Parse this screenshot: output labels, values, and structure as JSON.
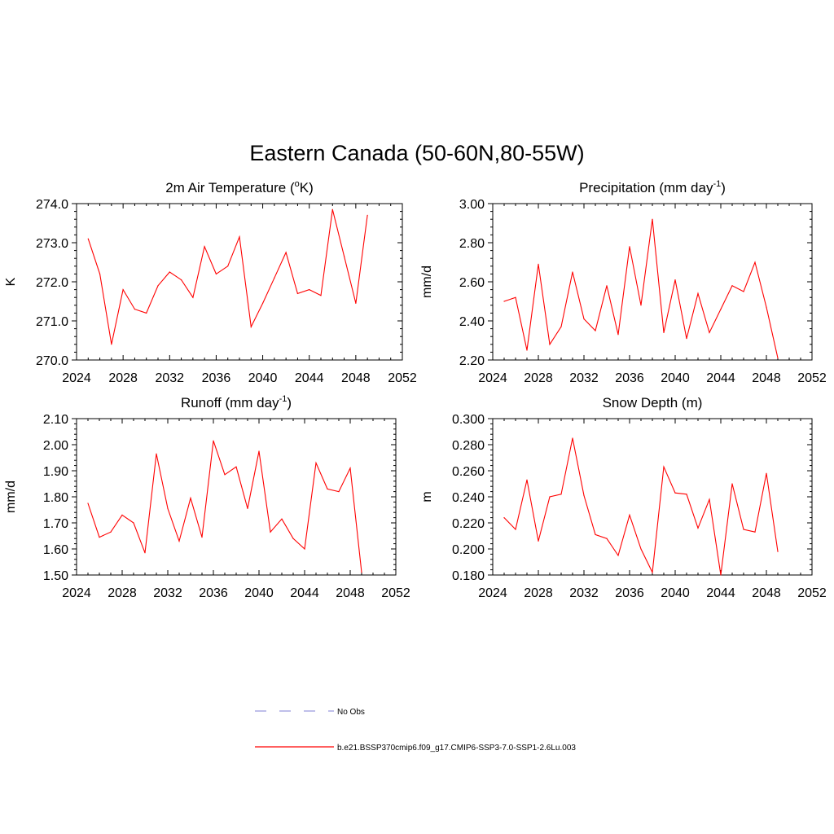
{
  "title": "Eastern Canada (50-60N,80-55W)",
  "legend": {
    "items": [
      {
        "label": "No Obs",
        "style": "dashed",
        "color": "#9999dd"
      },
      {
        "label": "b.e21.BSSP370cmip6.f09_g17.CMIP6-SSP3-7.0-SSP1-2.6Lu.003",
        "style": "solid",
        "color": "#ff0000"
      }
    ]
  },
  "chart_data": [
    {
      "type": "line",
      "title_main": "2m Air Temperature (",
      "title_sup": "o",
      "title_tail": "K)",
      "ylabel": "K",
      "xlim": [
        2024,
        2052
      ],
      "ylim": [
        270.0,
        274.0
      ],
      "xticks": [
        "2024",
        "2028",
        "2032",
        "2036",
        "2040",
        "2044",
        "2048",
        "2052"
      ],
      "yticks": [
        "270.0",
        "271.0",
        "272.0",
        "273.0",
        "274.0"
      ],
      "x": [
        2025,
        2026,
        2027,
        2028,
        2029,
        2030,
        2031,
        2032,
        2033,
        2034,
        2035,
        2036,
        2037,
        2038,
        2039,
        2040,
        2041,
        2042,
        2043,
        2044,
        2045,
        2046,
        2047,
        2048,
        2049
      ],
      "series": [
        {
          "color": "#ff0000",
          "values": [
            273.1,
            272.2,
            270.4,
            271.8,
            271.3,
            271.2,
            271.9,
            272.25,
            272.05,
            271.6,
            272.9,
            272.2,
            272.4,
            273.15,
            270.85,
            271.45,
            272.1,
            272.75,
            271.7,
            271.8,
            271.65,
            273.85,
            272.65,
            271.45,
            273.7
          ]
        }
      ]
    },
    {
      "type": "line",
      "title_main": "Precipitation (mm day",
      "title_sup": "-1",
      "title_tail": ")",
      "ylabel": "mm/d",
      "xlim": [
        2024,
        2052
      ],
      "ylim": [
        2.2,
        3.0
      ],
      "xticks": [
        "2024",
        "2028",
        "2032",
        "2036",
        "2040",
        "2044",
        "2048",
        "2052"
      ],
      "yticks": [
        "2.20",
        "2.40",
        "2.60",
        "2.80",
        "3.00"
      ],
      "x": [
        2025,
        2026,
        2027,
        2028,
        2029,
        2030,
        2031,
        2032,
        2033,
        2034,
        2035,
        2036,
        2037,
        2038,
        2039,
        2040,
        2041,
        2042,
        2043,
        2044,
        2045,
        2046,
        2047,
        2048,
        2049
      ],
      "series": [
        {
          "color": "#ff0000",
          "values": [
            2.5,
            2.52,
            2.25,
            2.69,
            2.28,
            2.37,
            2.65,
            2.41,
            2.35,
            2.58,
            2.33,
            2.78,
            2.48,
            2.92,
            2.34,
            2.61,
            2.31,
            2.54,
            2.34,
            2.46,
            2.58,
            2.55,
            2.7,
            2.47,
            2.21
          ]
        }
      ]
    },
    {
      "type": "line",
      "title_main": "Runoff (mm day",
      "title_sup": "-1",
      "title_tail": ")",
      "ylabel": "mm/d",
      "xlim": [
        2024,
        2052
      ],
      "ylim": [
        1.5,
        2.1
      ],
      "xticks": [
        "2024",
        "2028",
        "2032",
        "2036",
        "2040",
        "2044",
        "2048",
        "2052"
      ],
      "yticks": [
        "1.50",
        "1.60",
        "1.70",
        "1.80",
        "1.90",
        "2.00",
        "2.10"
      ],
      "x": [
        2025,
        2026,
        2027,
        2028,
        2029,
        2030,
        2031,
        2032,
        2033,
        2034,
        2035,
        2036,
        2037,
        2038,
        2039,
        2040,
        2041,
        2042,
        2043,
        2044,
        2045,
        2046,
        2047,
        2048,
        2049
      ],
      "series": [
        {
          "color": "#ff0000",
          "values": [
            1.775,
            1.645,
            1.665,
            1.73,
            1.7,
            1.585,
            1.965,
            1.755,
            1.63,
            1.795,
            1.645,
            2.015,
            1.885,
            1.915,
            1.755,
            1.975,
            1.665,
            1.715,
            1.64,
            1.6,
            1.93,
            1.83,
            1.82,
            1.91,
            1.51
          ]
        }
      ]
    },
    {
      "type": "line",
      "title_main": "Snow Depth (m)",
      "title_sup": "",
      "title_tail": "",
      "ylabel": "m",
      "xlim": [
        2024,
        2052
      ],
      "ylim": [
        0.18,
        0.3
      ],
      "xticks": [
        "2024",
        "2028",
        "2032",
        "2036",
        "2040",
        "2044",
        "2048",
        "2052"
      ],
      "yticks": [
        "0.180",
        "0.200",
        "0.220",
        "0.240",
        "0.260",
        "0.280",
        "0.300"
      ],
      "x": [
        2025,
        2026,
        2027,
        2028,
        2029,
        2030,
        2031,
        2032,
        2033,
        2034,
        2035,
        2036,
        2037,
        2038,
        2039,
        2040,
        2041,
        2042,
        2043,
        2044,
        2045,
        2046,
        2047,
        2048,
        2049
      ],
      "series": [
        {
          "color": "#ff0000",
          "values": [
            0.224,
            0.215,
            0.253,
            0.206,
            0.24,
            0.242,
            0.285,
            0.241,
            0.211,
            0.208,
            0.195,
            0.226,
            0.2,
            0.182,
            0.263,
            0.243,
            0.242,
            0.216,
            0.238,
            0.18,
            0.25,
            0.215,
            0.213,
            0.258,
            0.198
          ]
        }
      ]
    }
  ]
}
